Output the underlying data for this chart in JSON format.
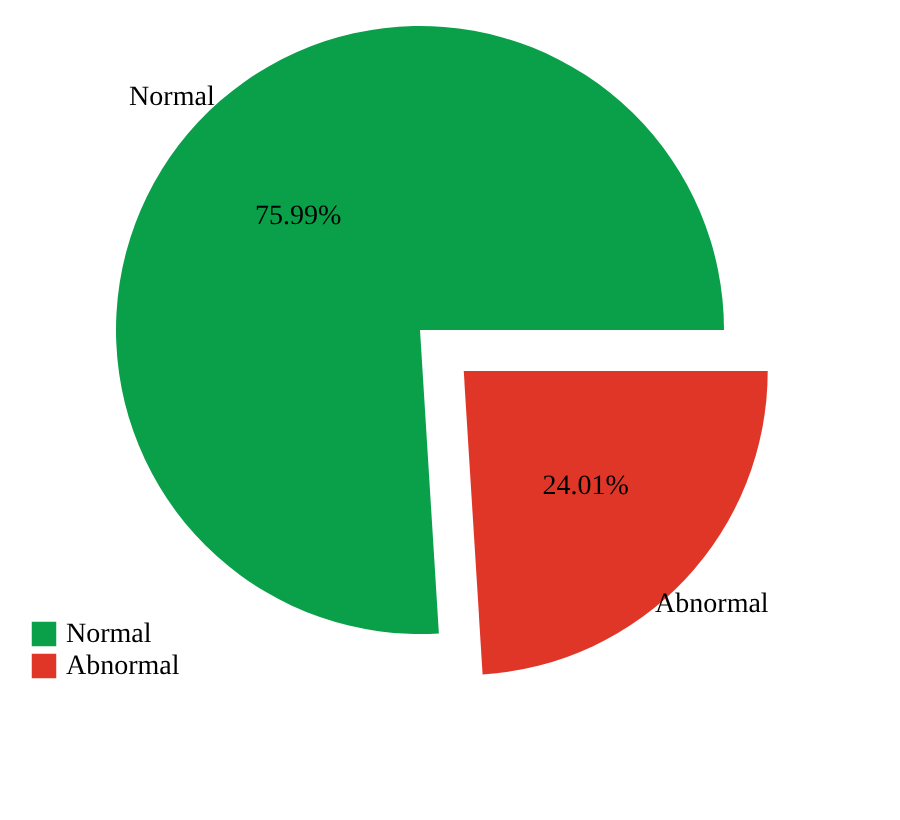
{
  "chart_data": {
    "type": "pie",
    "categories": [
      "Normal",
      "Abnormal"
    ],
    "values": [
      75.99,
      24.01
    ],
    "colors": [
      "#0aa04a",
      "#e03628"
    ],
    "value_labels": [
      "75.99%",
      "24.01%"
    ],
    "legend": "bottom left"
  }
}
